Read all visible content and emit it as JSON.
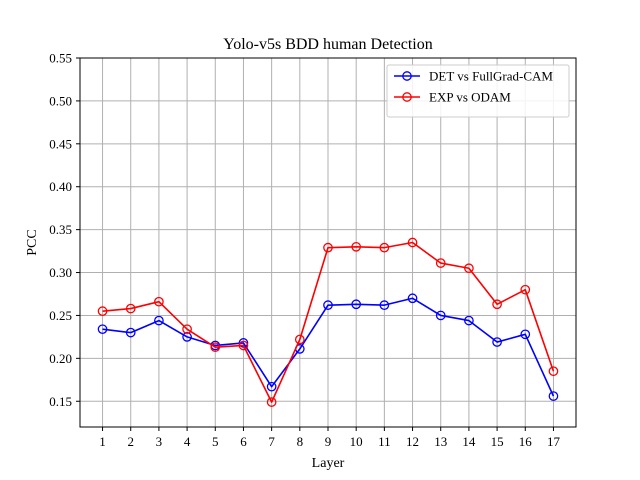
{
  "chart_data": {
    "type": "line",
    "title": "Yolo-v5s BDD human Detection",
    "xlabel": "Layer",
    "ylabel": "PCC",
    "x": [
      1,
      2,
      3,
      4,
      5,
      6,
      7,
      8,
      9,
      10,
      11,
      12,
      13,
      14,
      15,
      16,
      17
    ],
    "xticks": [
      "1",
      "2",
      "3",
      "4",
      "5",
      "6",
      "7",
      "8",
      "9",
      "10",
      "11",
      "12",
      "13",
      "14",
      "15",
      "16",
      "17"
    ],
    "xlim": [
      0.2,
      17.8
    ],
    "ylim": [
      0.12,
      0.55
    ],
    "yticks": [
      "0.15",
      "0.20",
      "0.25",
      "0.30",
      "0.35",
      "0.40",
      "0.45",
      "0.50",
      "0.55"
    ],
    "grid": true,
    "legend_position": "top-right",
    "series": [
      {
        "name": "DET vs FullGrad-CAM",
        "color": "#0000ff",
        "marker": "circle",
        "values": [
          0.234,
          0.23,
          0.244,
          0.225,
          0.215,
          0.218,
          0.167,
          0.211,
          0.262,
          0.263,
          0.262,
          0.27,
          0.25,
          0.244,
          0.219,
          0.228,
          0.156
        ]
      },
      {
        "name": "EXP vs ODAM",
        "color": "#ff0000",
        "marker": "circle",
        "values": [
          0.255,
          0.258,
          0.266,
          0.234,
          0.213,
          0.215,
          0.149,
          0.222,
          0.329,
          0.33,
          0.329,
          0.335,
          0.311,
          0.305,
          0.263,
          0.28,
          0.185
        ]
      }
    ]
  }
}
